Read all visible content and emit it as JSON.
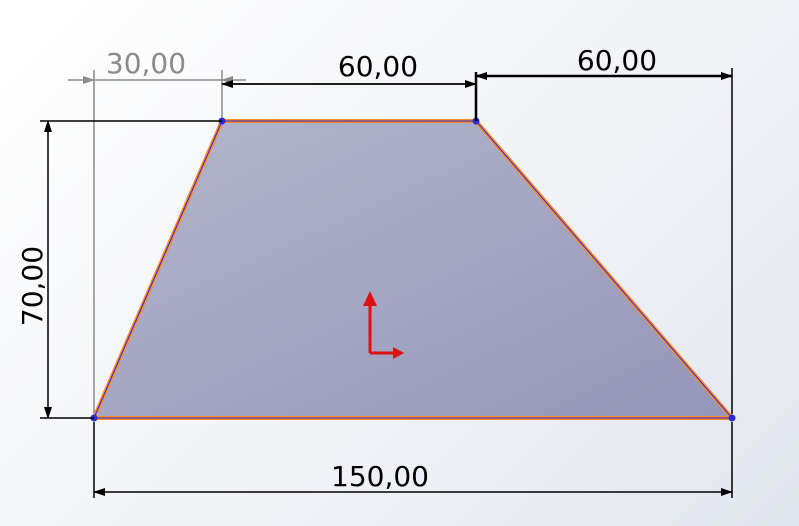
{
  "sketch": {
    "dimensions": {
      "offset_top_left": "30,00",
      "top_edge": "60,00",
      "offset_top_right": "60,00",
      "height": "70,00",
      "bottom_edge": "150,00"
    },
    "colors": {
      "fill": "#9fa3c3",
      "edge": "#ff8a2a",
      "edge_inner": "#2b2bd6",
      "dimension": "#000000",
      "dimension_faded": "#8a8a8a",
      "origin": "#e01010"
    }
  }
}
